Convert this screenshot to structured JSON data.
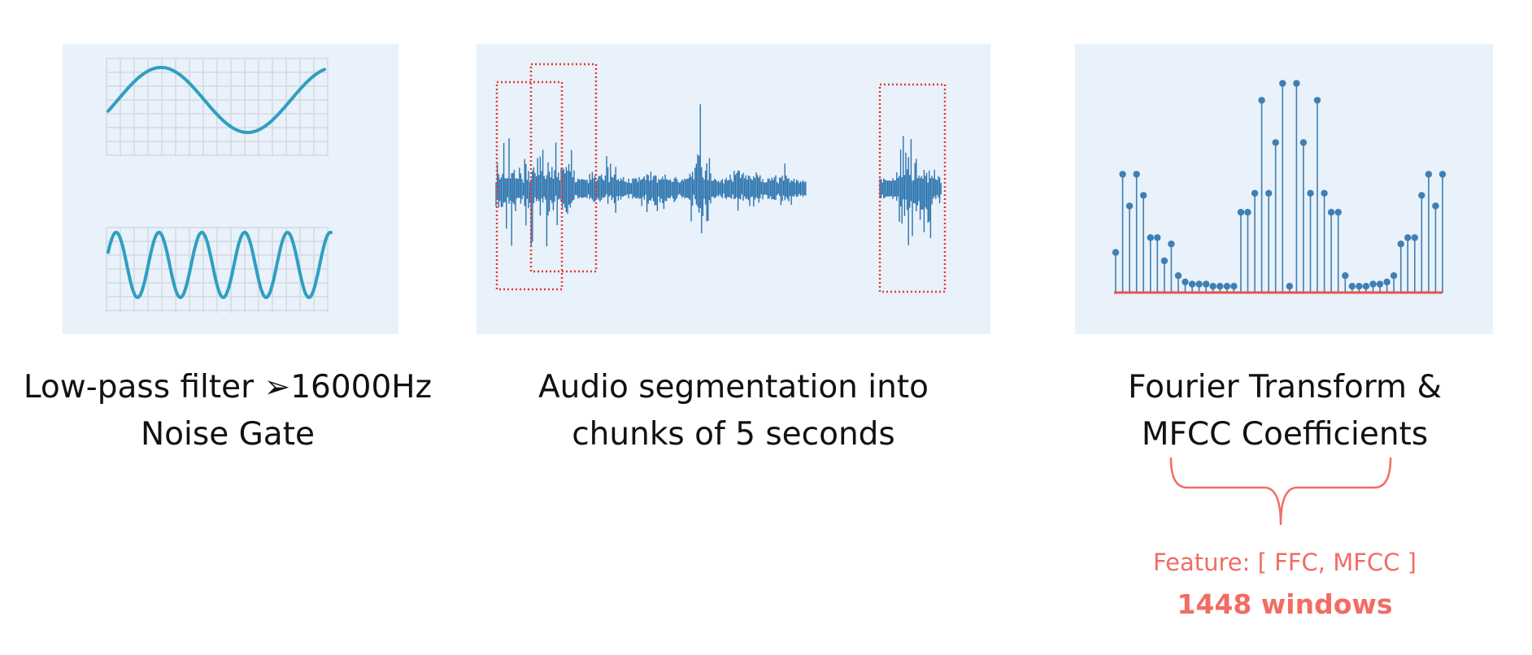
{
  "steps": [
    {
      "caption_line1": "Low-pass filter ➢16000Hz",
      "caption_line2": "Noise Gate"
    },
    {
      "caption_line1": "Audio segmentation into",
      "caption_line2": "chunks of 5 seconds"
    },
    {
      "caption_line1": "Fourier Transform &",
      "caption_line2": "MFCC Coefficients"
    }
  ],
  "feature": {
    "label": "Feature: [ FFC, MFCC ]",
    "windows": "1448 windows"
  },
  "colors": {
    "panel_bg": "#e9f1fa",
    "grid": "#d3d9e0",
    "wave": "#2f9fbf",
    "waveform": "#2a73ad",
    "segment_box": "#e53935",
    "stem": "#3e7fb4",
    "baseline": "#e8534a",
    "accent": "#f26c64"
  },
  "spectrum_values": [
    0.19,
    0.56,
    0.41,
    0.56,
    0.46,
    0.26,
    0.26,
    0.15,
    0.23,
    0.08,
    0.05,
    0.04,
    0.04,
    0.04,
    0.03,
    0.03,
    0.03,
    0.03,
    0.38,
    0.38,
    0.47,
    0.91,
    0.47,
    0.71,
    0.99,
    0.03,
    0.99,
    0.71,
    0.47,
    0.91,
    0.47,
    0.38,
    0.38,
    0.08,
    0.03,
    0.03,
    0.03,
    0.04,
    0.04,
    0.05,
    0.08,
    0.23,
    0.26,
    0.26,
    0.46,
    0.56,
    0.41,
    0.56
  ]
}
